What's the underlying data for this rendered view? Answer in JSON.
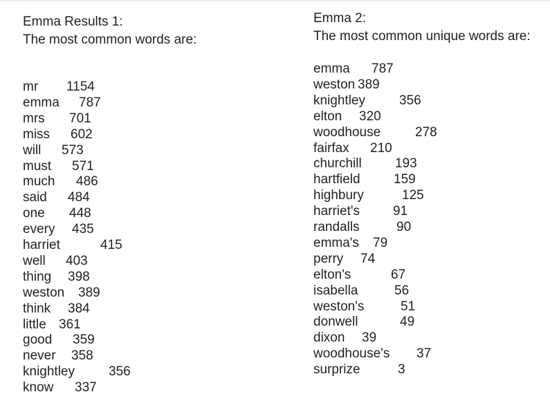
{
  "left": {
    "title": "Emma Results 1:",
    "subtitle": "The most common words are:",
    "rows": [
      {
        "word": "mr",
        "count": "1154"
      },
      {
        "word": "emma",
        "count": "787"
      },
      {
        "word": "mrs",
        "count": "701"
      },
      {
        "word": "miss",
        "count": "602"
      },
      {
        "word": "will",
        "count": "573"
      },
      {
        "word": "must",
        "count": "571"
      },
      {
        "word": "much",
        "count": "486"
      },
      {
        "word": "said",
        "count": "484"
      },
      {
        "word": "one",
        "count": "448"
      },
      {
        "word": "every",
        "count": "435"
      },
      {
        "word": "harriet",
        "count": "415"
      },
      {
        "word": "well",
        "count": "403"
      },
      {
        "word": "thing",
        "count": "398"
      },
      {
        "word": "weston",
        "count": "389"
      },
      {
        "word": "think",
        "count": "384"
      },
      {
        "word": "little",
        "count": "361"
      },
      {
        "word": "good",
        "count": "359"
      },
      {
        "word": "never",
        "count": "358"
      },
      {
        "word": "knightley",
        "count": "356"
      },
      {
        "word": "know",
        "count": "337"
      }
    ]
  },
  "right": {
    "title": "Emma 2:",
    "subtitle": "The most common unique words are:",
    "rows": [
      {
        "word": "emma",
        "count": "787"
      },
      {
        "word": "weston",
        "count": "389"
      },
      {
        "word": "knightley",
        "count": "356"
      },
      {
        "word": "elton",
        "count": "320"
      },
      {
        "word": "woodhouse",
        "count": "278"
      },
      {
        "word": "fairfax",
        "count": "210"
      },
      {
        "word": "churchill",
        "count": "193"
      },
      {
        "word": "hartfield",
        "count": "159"
      },
      {
        "word": "highbury",
        "count": "125"
      },
      {
        "word": "harriet's",
        "count": "91"
      },
      {
        "word": "randalls",
        "count": "90"
      },
      {
        "word": "emma's",
        "count": "79"
      },
      {
        "word": "perry",
        "count": "74"
      },
      {
        "word": "elton's",
        "count": "67"
      },
      {
        "word": "isabella",
        "count": "56"
      },
      {
        "word": "weston's",
        "count": "51"
      },
      {
        "word": "donwell",
        "count": "49"
      },
      {
        "word": "dixon",
        "count": "39"
      },
      {
        "word": "woodhouse's",
        "count": "37"
      },
      {
        "word": "surprize",
        "count": "3"
      }
    ]
  }
}
